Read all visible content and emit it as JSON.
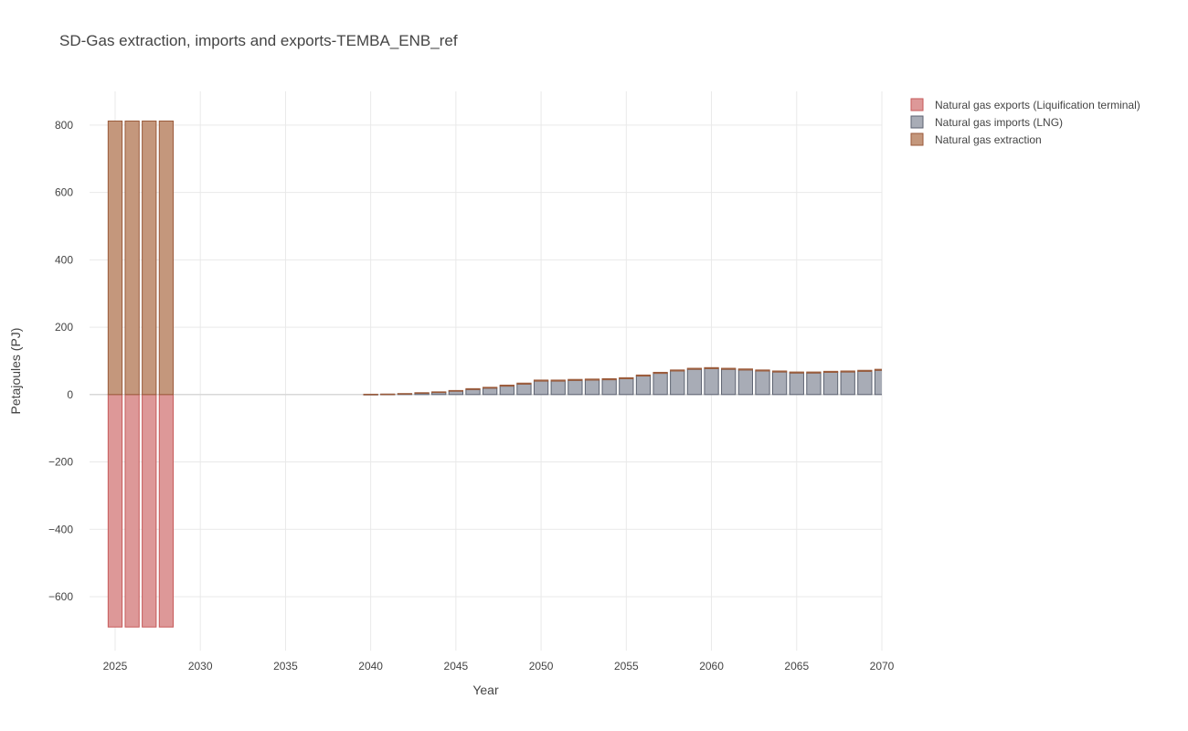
{
  "chart_data": {
    "type": "bar",
    "barmode": "relative",
    "title": "SD-Gas extraction, imports and exports-TEMBA_ENB_ref",
    "xlabel": "Year",
    "ylabel": "Petajoules (PJ)",
    "xlim": [
      2023.5,
      2070
    ],
    "ylim": [
      -760,
      900
    ],
    "xticks": [
      2025,
      2030,
      2035,
      2040,
      2045,
      2050,
      2055,
      2060,
      2065,
      2070
    ],
    "yticks": [
      -600,
      -400,
      -200,
      0,
      200,
      400,
      600,
      800
    ],
    "grid": true,
    "legend_position": "top-right outside",
    "series": [
      {
        "name": "Natural gas exports (Liquification terminal)",
        "fill": "#dd9898",
        "stroke": "#c65a5a",
        "x": [
          2025,
          2026,
          2027,
          2028
        ],
        "values": [
          -690,
          -690,
          -690,
          -690
        ]
      },
      {
        "name": "Natural gas imports (LNG)",
        "fill": "#a8acb6",
        "stroke": "#5c6270",
        "x": [
          2040,
          2041,
          2042,
          2043,
          2044,
          2045,
          2046,
          2047,
          2048,
          2049,
          2050,
          2051,
          2052,
          2053,
          2054,
          2055,
          2056,
          2057,
          2058,
          2059,
          2060,
          2061,
          2062,
          2063,
          2064,
          2065,
          2066,
          2067,
          2068,
          2069,
          2070
        ],
        "values": [
          0.5,
          1,
          2,
          4,
          6,
          10,
          15,
          19,
          25,
          31,
          40,
          40,
          42,
          43,
          44,
          47,
          55,
          63,
          70,
          75,
          77,
          75,
          73,
          70,
          67,
          64,
          64,
          66,
          67,
          69,
          72
        ]
      },
      {
        "name": "Natural gas extraction",
        "fill": "#c4977c",
        "stroke": "#9a5a3a",
        "x": [
          2025,
          2026,
          2027,
          2028,
          2040,
          2041,
          2042,
          2043,
          2044,
          2045,
          2046,
          2047,
          2048,
          2049,
          2050,
          2051,
          2052,
          2053,
          2054,
          2055,
          2056,
          2057,
          2058,
          2059,
          2060,
          2061,
          2062,
          2063,
          2064,
          2065,
          2066,
          2067,
          2068,
          2069,
          2070
        ],
        "values": [
          812,
          812,
          812,
          812,
          0.5,
          0.5,
          1,
          1.5,
          2,
          2,
          2.5,
          2.5,
          3,
          3,
          3,
          3,
          3,
          3,
          3,
          3,
          3,
          3,
          3,
          3,
          3,
          3,
          3,
          3,
          3,
          3,
          3,
          3,
          3,
          3,
          3
        ]
      }
    ]
  }
}
